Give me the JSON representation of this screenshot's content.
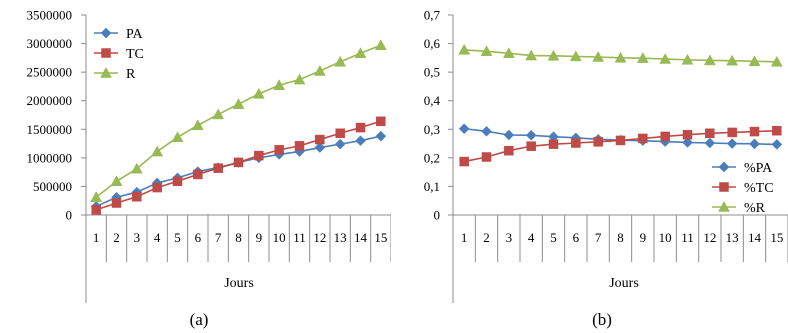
{
  "chart_data": [
    {
      "type": "line",
      "caption": "(a)",
      "xlabel": "Jours",
      "ylabel": "",
      "categories": [
        "1",
        "2",
        "3",
        "4",
        "5",
        "6",
        "7",
        "8",
        "9",
        "10",
        "11",
        "12",
        "13",
        "14",
        "15"
      ],
      "yticks": [
        "0",
        "500000",
        "1000000",
        "1500000",
        "2000000",
        "2500000",
        "3000000",
        "3500000"
      ],
      "ylim": [
        0,
        3500000
      ],
      "legend_position": "top-left",
      "grid": false,
      "series": [
        {
          "name": "PA",
          "color": "#4a7ebb",
          "marker": "diamond",
          "values": [
            150000,
            310000,
            400000,
            560000,
            650000,
            760000,
            830000,
            920000,
            1000000,
            1060000,
            1110000,
            1180000,
            1240000,
            1300000,
            1380000
          ]
        },
        {
          "name": "TC",
          "color": "#be4b48",
          "marker": "square",
          "values": [
            90000,
            210000,
            320000,
            480000,
            590000,
            710000,
            820000,
            920000,
            1040000,
            1140000,
            1210000,
            1320000,
            1430000,
            1530000,
            1640000
          ]
        },
        {
          "name": "R",
          "color": "#98b954",
          "marker": "triangle",
          "values": [
            310000,
            590000,
            810000,
            1110000,
            1360000,
            1570000,
            1760000,
            1940000,
            2120000,
            2270000,
            2370000,
            2520000,
            2680000,
            2830000,
            2970000
          ]
        }
      ]
    },
    {
      "type": "line",
      "caption": "(b)",
      "xlabel": "Jours",
      "ylabel": "",
      "categories": [
        "1",
        "2",
        "3",
        "4",
        "5",
        "6",
        "7",
        "8",
        "9",
        "10",
        "11",
        "12",
        "13",
        "14",
        "15"
      ],
      "yticks": [
        "0",
        "0,1",
        "0,2",
        "0,3",
        "0,4",
        "0,5",
        "0,6",
        "0,7"
      ],
      "ylim": [
        0,
        0.7
      ],
      "legend_position": "bottom-right",
      "grid": false,
      "series": [
        {
          "name": "%PA",
          "color": "#4a7ebb",
          "marker": "diamond",
          "values": [
            0.302,
            0.293,
            0.28,
            0.279,
            0.274,
            0.27,
            0.265,
            0.262,
            0.26,
            0.257,
            0.254,
            0.252,
            0.25,
            0.249,
            0.247
          ]
        },
        {
          "name": "%TC",
          "color": "#be4b48",
          "marker": "square",
          "values": [
            0.187,
            0.203,
            0.225,
            0.241,
            0.248,
            0.252,
            0.256,
            0.261,
            0.268,
            0.275,
            0.281,
            0.286,
            0.289,
            0.292,
            0.295
          ]
        },
        {
          "name": "%R",
          "color": "#98b954",
          "marker": "triangle",
          "values": [
            0.578,
            0.573,
            0.566,
            0.558,
            0.557,
            0.555,
            0.553,
            0.55,
            0.549,
            0.546,
            0.543,
            0.541,
            0.54,
            0.538,
            0.536
          ]
        }
      ]
    }
  ]
}
